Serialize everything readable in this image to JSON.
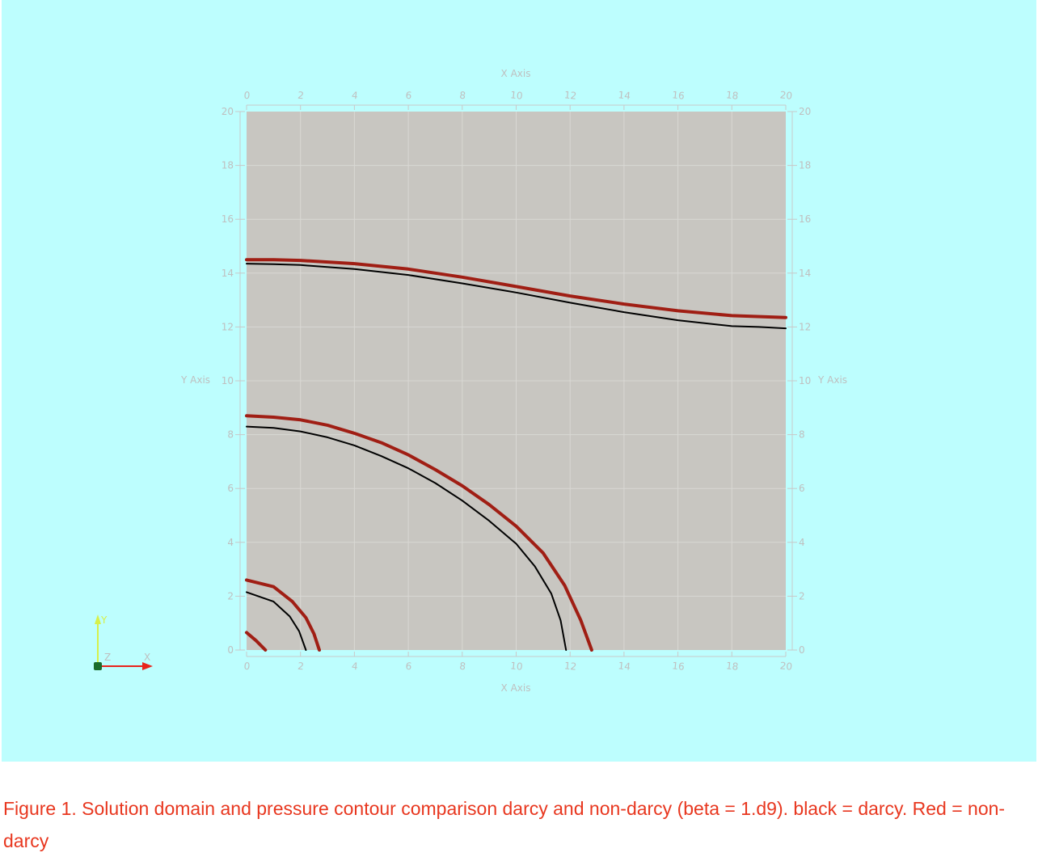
{
  "chart_data": {
    "type": "line",
    "title": "",
    "xlabel": "X Axis",
    "ylabel": "Y Axis",
    "xlim": [
      0,
      20
    ],
    "ylim": [
      0,
      20
    ],
    "xticks": [
      "0",
      "2",
      "4",
      "6",
      "8",
      "10",
      "12",
      "14",
      "16",
      "18",
      "20"
    ],
    "yticks": [
      "0",
      "2",
      "4",
      "6",
      "8",
      "10",
      "12",
      "14",
      "16",
      "18",
      "20"
    ],
    "grid": true,
    "plot_background": "#c8c6c1",
    "background": "#bdfefe",
    "grid_color": "#d9d8d4",
    "series": [
      {
        "color": "#a01e14",
        "points": [
          [
            0,
            14.5
          ],
          [
            1,
            14.5
          ],
          [
            2,
            14.47
          ],
          [
            4,
            14.35
          ],
          [
            6,
            14.15
          ],
          [
            8,
            13.85
          ],
          [
            10,
            13.5
          ],
          [
            12,
            13.15
          ],
          [
            14,
            12.85
          ],
          [
            16,
            12.6
          ],
          [
            18,
            12.42
          ],
          [
            20,
            12.35
          ]
        ]
      },
      {
        "color": "#000000",
        "points": [
          [
            0,
            14.35
          ],
          [
            1,
            14.33
          ],
          [
            2,
            14.3
          ],
          [
            4,
            14.15
          ],
          [
            6,
            13.93
          ],
          [
            8,
            13.62
          ],
          [
            10,
            13.28
          ],
          [
            12,
            12.9
          ],
          [
            14,
            12.55
          ],
          [
            16,
            12.25
          ],
          [
            18,
            12.03
          ],
          [
            19,
            12
          ],
          [
            20,
            11.95
          ]
        ]
      },
      {
        "color": "#a01e14",
        "points": [
          [
            0,
            8.7
          ],
          [
            1,
            8.65
          ],
          [
            2,
            8.55
          ],
          [
            3,
            8.35
          ],
          [
            4,
            8.05
          ],
          [
            5,
            7.7
          ],
          [
            6,
            7.25
          ],
          [
            7,
            6.7
          ],
          [
            8,
            6.1
          ],
          [
            9,
            5.4
          ],
          [
            10,
            4.6
          ],
          [
            11,
            3.6
          ],
          [
            11.8,
            2.4
          ],
          [
            12.4,
            1.1
          ],
          [
            12.8,
            0
          ]
        ]
      },
      {
        "color": "#000000",
        "points": [
          [
            0,
            8.3
          ],
          [
            1,
            8.25
          ],
          [
            2,
            8.12
          ],
          [
            3,
            7.9
          ],
          [
            4,
            7.6
          ],
          [
            5,
            7.2
          ],
          [
            6,
            6.75
          ],
          [
            7,
            6.2
          ],
          [
            8,
            5.55
          ],
          [
            9,
            4.8
          ],
          [
            10,
            3.95
          ],
          [
            10.7,
            3.1
          ],
          [
            11.3,
            2.1
          ],
          [
            11.65,
            1.1
          ],
          [
            11.85,
            0
          ]
        ]
      },
      {
        "color": "#a01e14",
        "points": [
          [
            0,
            2.6
          ],
          [
            1,
            2.35
          ],
          [
            1.7,
            1.8
          ],
          [
            2.2,
            1.2
          ],
          [
            2.5,
            0.6
          ],
          [
            2.7,
            0
          ]
        ]
      },
      {
        "color": "#000000",
        "points": [
          [
            0,
            2.15
          ],
          [
            1,
            1.8
          ],
          [
            1.6,
            1.25
          ],
          [
            1.95,
            0.7
          ],
          [
            2.2,
            0
          ]
        ]
      },
      {
        "color": "#a01e14",
        "points": [
          [
            0,
            0.65
          ],
          [
            0.35,
            0.35
          ],
          [
            0.7,
            0
          ]
        ]
      }
    ]
  },
  "axes_triad": {
    "y_label": "Y",
    "z_label": "Z",
    "x_label": "X",
    "x_color": "#e8241c",
    "y_color": "#d6f04a",
    "z_color": "#1a6b2a"
  },
  "caption": "Figure 1. Solution domain and pressure contour comparison darcy and non-darcy (beta = 1.d9). black = darcy. Red = non-darcy"
}
